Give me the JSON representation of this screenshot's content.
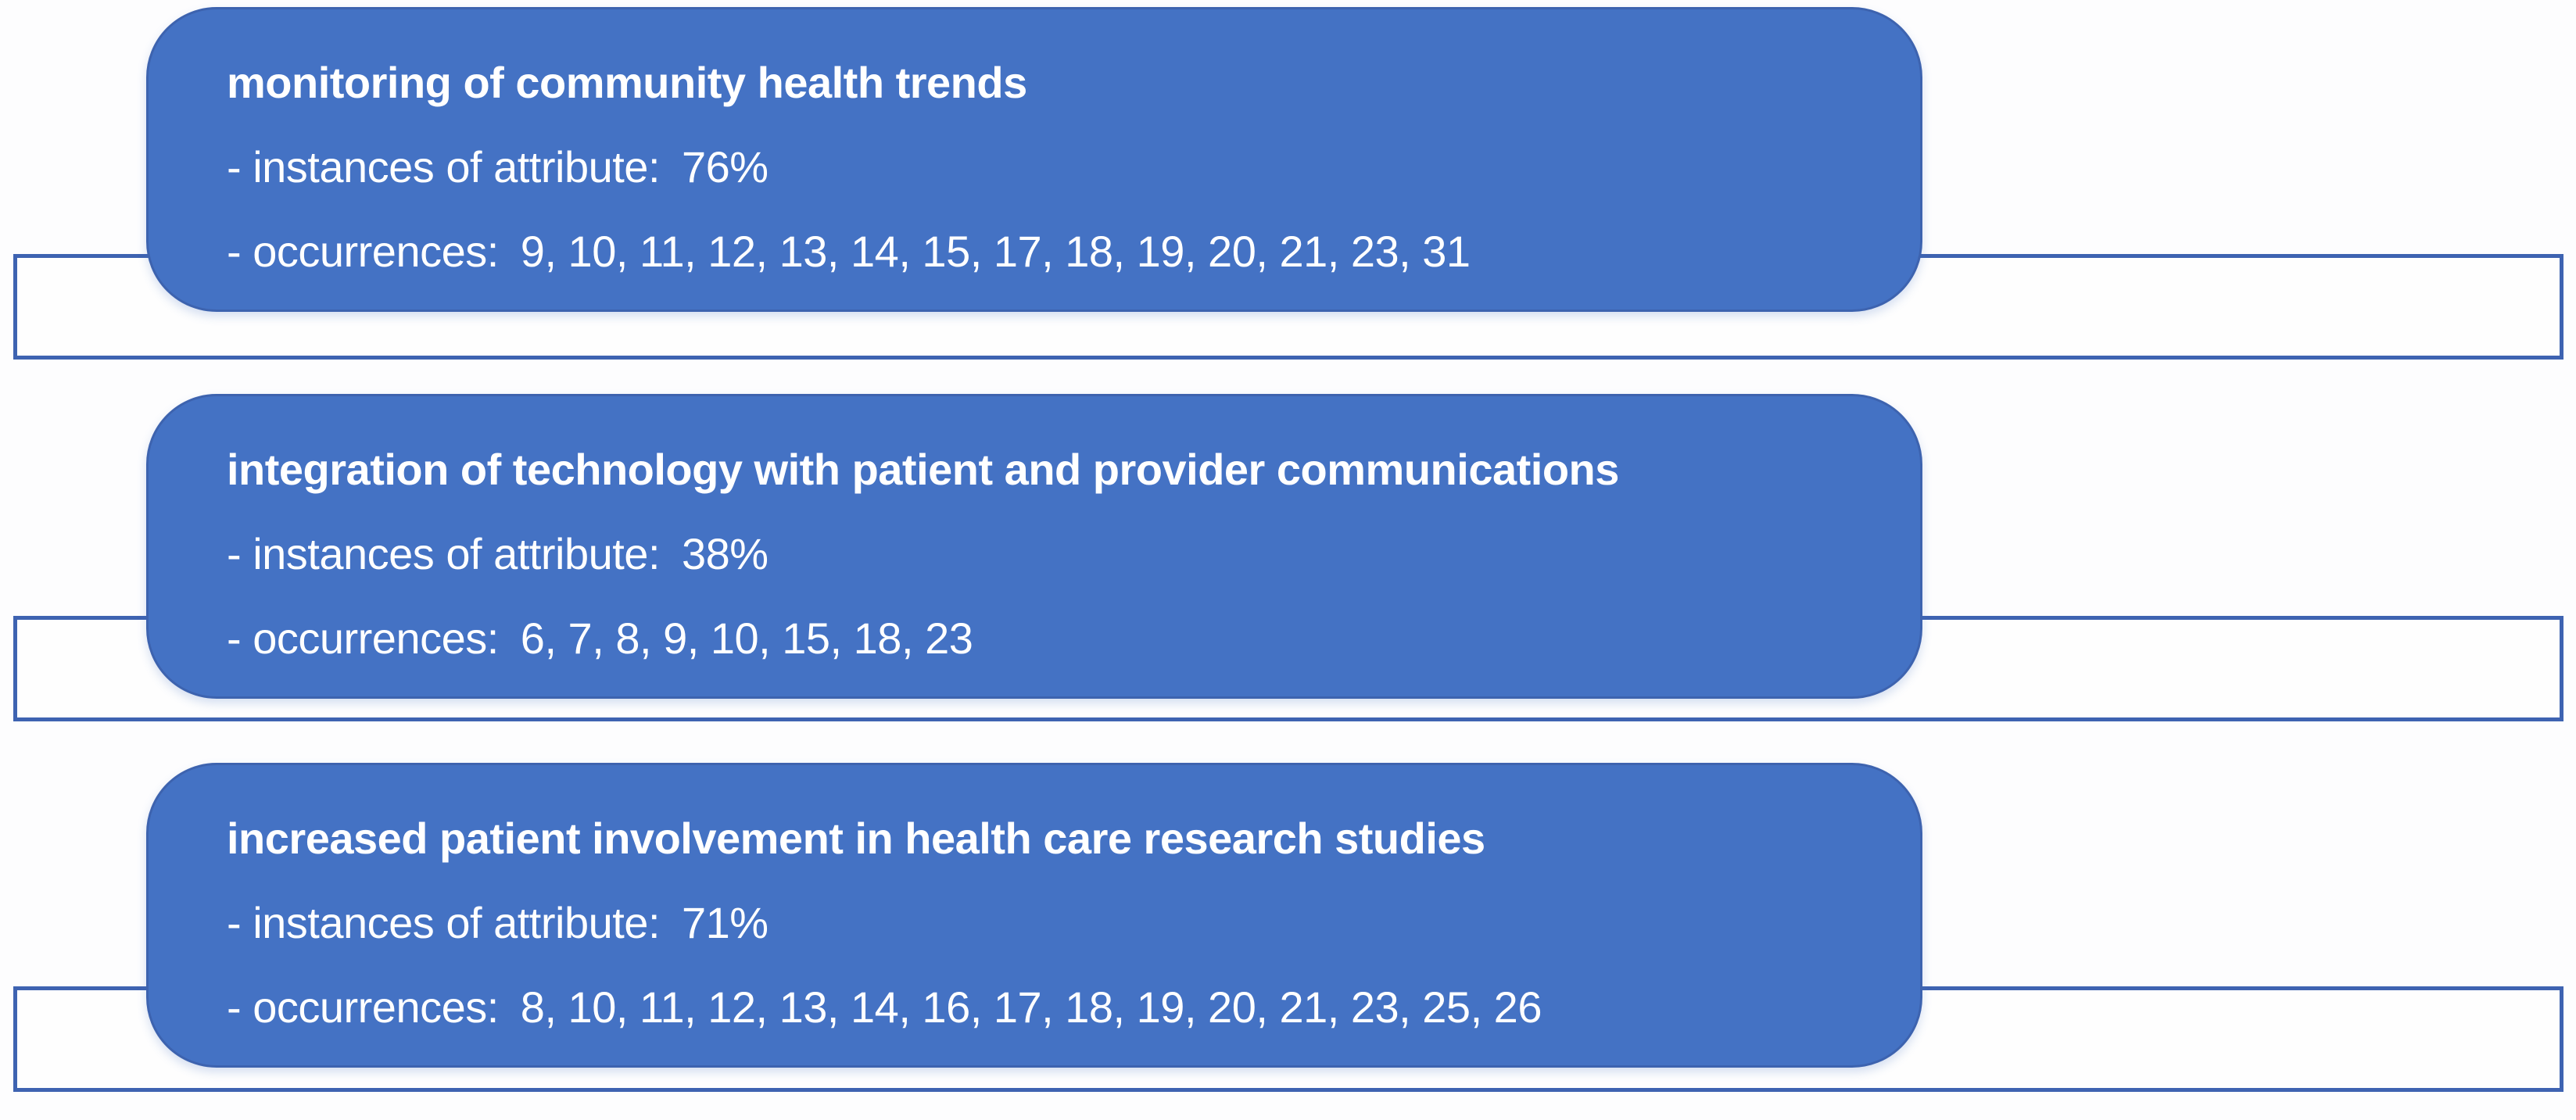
{
  "diagram": {
    "colors": {
      "card_fill": "#4472C4",
      "card_border": "#3D63AF",
      "track_border": "#3E63B1",
      "track_fill": "#FEFEFE",
      "text": "#FFFFFF",
      "background": "#FDFDFE"
    },
    "rows": [
      {
        "title": "monitoring of community health trends",
        "instances_label": "- instances of attribute:",
        "instances_value": "76%",
        "occurrences_label": "- occurrences:",
        "occurrences_list": "9, 10, 11, 12, 13, 14, 15, 17, 18, 19, 20, 21, 23, 31"
      },
      {
        "title": "integration of technology with patient and provider communications",
        "instances_label": "- instances of attribute:",
        "instances_value": "38%",
        "occurrences_label": "- occurrences:",
        "occurrences_list": "6, 7, 8, 9, 10, 15, 18, 23"
      },
      {
        "title": "increased patient involvement in health care research studies",
        "instances_label": "- instances of attribute:",
        "instances_value": "71%",
        "occurrences_label": "- occurrences:",
        "occurrences_list": "8, 10, 11, 12, 13, 14, 16, 17, 18, 19, 20, 21, 23, 25, 26"
      }
    ]
  }
}
